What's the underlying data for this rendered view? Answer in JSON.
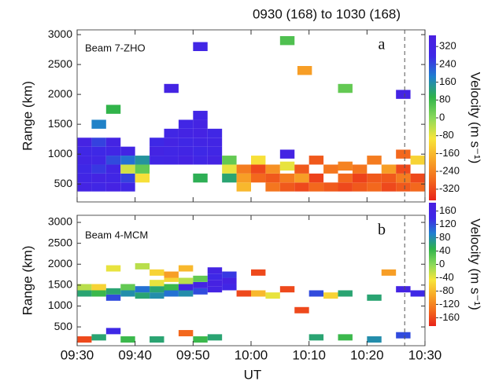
{
  "chart_data": [
    {
      "type": "heatmap",
      "title": "0930 (168) to 1030 (168)",
      "label": "a",
      "annotation": "Beam 7-ZHO",
      "ylabel": "Range (km)",
      "colorbar_label": "Velocity (m s⁻¹)",
      "xlim": [
        0,
        60
      ],
      "xticks": [
        0,
        10,
        20,
        30,
        40,
        50,
        60
      ],
      "ylim": [
        200,
        3080
      ],
      "yticks": [
        500,
        1000,
        1500,
        2000,
        2500,
        3000
      ],
      "clim": [
        -370,
        370
      ],
      "cticks": [
        320,
        240,
        160,
        80,
        0,
        -80,
        -160,
        -240,
        -320
      ],
      "colormap": [
        "#e8231a",
        "#f36a1d",
        "#f8a828",
        "#f7e53a",
        "#8ad95a",
        "#2fb34a",
        "#1f7fcf",
        "#3e28e6",
        "#4a1fe0"
      ],
      "vline": 56.5,
      "x": [
        0,
        0,
        0,
        0,
        0,
        0,
        2.5,
        2.5,
        2.5,
        2.5,
        2.5,
        2.5,
        5,
        5,
        5,
        5,
        5,
        5,
        7.5,
        7.5,
        7.5,
        7.5,
        7.5,
        10,
        10,
        10,
        12.5,
        12.5,
        12.5,
        15,
        15,
        15,
        15,
        17.5,
        17.5,
        17.5,
        17.5,
        17.5,
        20,
        20,
        20,
        20,
        20,
        20,
        22.5,
        22.5,
        22.5,
        22.5,
        25,
        25,
        25,
        2.5,
        15,
        20,
        35,
        38,
        45,
        55,
        20,
        5,
        27.5,
        27.5,
        27.5,
        30,
        30,
        30,
        32.5,
        32.5,
        32.5,
        35,
        35,
        35,
        35,
        37.5,
        37.5,
        37.5,
        40,
        40,
        40,
        42.5,
        42.5,
        45,
        45,
        45,
        47.5,
        47.5,
        47.5,
        50,
        50,
        50,
        52.5,
        52.5,
        52.5,
        55,
        55,
        55,
        55,
        57.5,
        57.5,
        57.5
      ],
      "y": [
        450,
        600,
        750,
        900,
        1050,
        1200,
        450,
        600,
        750,
        900,
        1050,
        1200,
        450,
        600,
        750,
        900,
        1050,
        1200,
        450,
        600,
        750,
        900,
        1050,
        600,
        750,
        900,
        900,
        1050,
        1200,
        900,
        1050,
        1200,
        1350,
        900,
        1050,
        1200,
        1350,
        1500,
        900,
        1050,
        1200,
        1350,
        1500,
        1650,
        900,
        1050,
        1200,
        1350,
        750,
        900,
        600,
        1500,
        2100,
        2800,
        2900,
        2400,
        2100,
        2000,
        600,
        1750,
        750,
        600,
        450,
        600,
        750,
        900,
        450,
        600,
        750,
        450,
        600,
        800,
        1000,
        450,
        600,
        750,
        450,
        600,
        900,
        450,
        750,
        450,
        600,
        800,
        450,
        600,
        750,
        450,
        600,
        900,
        450,
        600,
        750,
        450,
        600,
        750,
        1000,
        450,
        600,
        900
      ],
      "values": [
        320,
        300,
        280,
        310,
        290,
        330,
        300,
        320,
        260,
        300,
        280,
        250,
        330,
        300,
        310,
        240,
        300,
        320,
        290,
        250,
        -60,
        200,
        310,
        -100,
        40,
        150,
        300,
        320,
        280,
        310,
        300,
        320,
        300,
        330,
        310,
        290,
        320,
        300,
        300,
        280,
        310,
        330,
        320,
        300,
        320,
        300,
        310,
        290,
        -80,
        40,
        120,
        180,
        320,
        300,
        60,
        -200,
        40,
        320,
        100,
        90,
        -250,
        -200,
        -160,
        -280,
        -320,
        -100,
        -260,
        -300,
        -220,
        -300,
        -250,
        -80,
        320,
        -320,
        -200,
        -300,
        -280,
        -330,
        -300,
        -300,
        -260,
        -320,
        -280,
        -240,
        -300,
        -330,
        -260,
        -280,
        -300,
        -250,
        -320,
        -300,
        -200,
        -300,
        -250,
        -320,
        -280,
        -280,
        -320,
        -120
      ]
    },
    {
      "type": "heatmap",
      "label": "b",
      "annotation": "Beam 4-MCM",
      "xlabel": "UT",
      "ylabel": "Range (km)",
      "colorbar_label": "Velocity (m s⁻¹)",
      "xlim": [
        0,
        60
      ],
      "xticks": [
        {
          "value": 0,
          "label": "09:30"
        },
        {
          "value": 10,
          "label": "09:40"
        },
        {
          "value": 20,
          "label": "09:50"
        },
        {
          "value": 30,
          "label": "10:00"
        },
        {
          "value": 40,
          "label": "10:10"
        },
        {
          "value": 50,
          "label": "10:20"
        },
        {
          "value": 60,
          "label": "10:30"
        }
      ],
      "ylim": [
        50,
        3170
      ],
      "yticks": [
        500,
        1000,
        1500,
        2000,
        2500,
        3000
      ],
      "clim": [
        -185,
        185
      ],
      "cticks": [
        160,
        120,
        80,
        40,
        0,
        -40,
        -80,
        -120,
        -160
      ],
      "colormap": [
        "#e8231a",
        "#f36a1d",
        "#f8a828",
        "#f7e53a",
        "#8ad95a",
        "#2fb34a",
        "#1f7fcf",
        "#3e28e6",
        "#4a1fe0"
      ],
      "vline": 56.5,
      "x": [
        0,
        0,
        2.5,
        2.5,
        5,
        5,
        7.5,
        7.5,
        10,
        10,
        12.5,
        12.5,
        12.5,
        15,
        15,
        15,
        17.5,
        17.5,
        17.5,
        17.5,
        20,
        20,
        20,
        22.5,
        22.5,
        22.5,
        22.5,
        25,
        25,
        25,
        5,
        10,
        12.5,
        15,
        0,
        2.5,
        5,
        7.5,
        12.5,
        17.5,
        20,
        22.5,
        27.5,
        30,
        32.5,
        35,
        40,
        42.5,
        45,
        50,
        55,
        57.5,
        40,
        45,
        50,
        55,
        37.5,
        52.5,
        30
      ],
      "y": [
        1300,
        1450,
        1300,
        1450,
        1200,
        1350,
        1300,
        1450,
        1250,
        1400,
        1250,
        1400,
        1550,
        1300,
        1450,
        1650,
        1300,
        1450,
        1600,
        1900,
        1350,
        1500,
        1650,
        1400,
        1550,
        1700,
        1850,
        1450,
        1600,
        1750,
        1900,
        1950,
        1800,
        1750,
        200,
        250,
        400,
        200,
        200,
        350,
        200,
        250,
        1300,
        1300,
        1250,
        1400,
        1300,
        1250,
        1300,
        1200,
        1400,
        1300,
        250,
        250,
        200,
        300,
        900,
        1800,
        1800
      ],
      "values": [
        60,
        -20,
        40,
        -60,
        120,
        60,
        80,
        20,
        60,
        100,
        80,
        60,
        -40,
        100,
        40,
        -60,
        80,
        160,
        -20,
        -80,
        120,
        160,
        20,
        160,
        170,
        140,
        160,
        150,
        170,
        130,
        -40,
        -20,
        -60,
        -100,
        -160,
        60,
        140,
        40,
        60,
        -140,
        40,
        60,
        -160,
        -80,
        -40,
        -160,
        120,
        -60,
        60,
        60,
        160,
        140,
        60,
        40,
        80,
        120,
        -160,
        -100,
        -160
      ]
    }
  ]
}
